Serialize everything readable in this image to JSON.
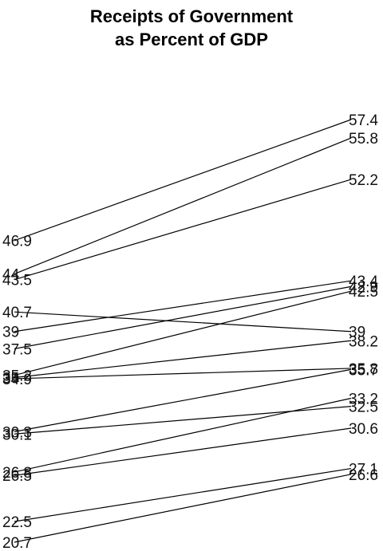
{
  "chart_data": {
    "type": "line",
    "title": [
      "Receipts of Government",
      "as Percent of GDP"
    ],
    "xlabel": "",
    "ylabel": "",
    "series": [
      {
        "values": [
          46.9,
          57.4
        ]
      },
      {
        "values": [
          44,
          55.8
        ]
      },
      {
        "values": [
          43.5,
          52.2
        ]
      },
      {
        "values": [
          40.7,
          39
        ]
      },
      {
        "values": [
          39,
          43.4
        ]
      },
      {
        "values": [
          37.5,
          42.9
        ]
      },
      {
        "values": [
          35.2,
          42.5
        ]
      },
      {
        "values": [
          35,
          38.2
        ]
      },
      {
        "values": [
          34.9,
          35.8
        ]
      },
      {
        "values": [
          30.3,
          35.7
        ]
      },
      {
        "values": [
          30.1,
          32.5
        ]
      },
      {
        "values": [
          26.8,
          33.2
        ]
      },
      {
        "values": [
          26.5,
          30.6
        ]
      },
      {
        "values": [
          22.5,
          27.1
        ]
      },
      {
        "values": [
          20.7,
          26.6
        ]
      }
    ],
    "ylim": [
      20.7,
      57.4
    ],
    "grid": false,
    "legend": "none",
    "line_color": "#000000",
    "text_color": "#111111"
  }
}
